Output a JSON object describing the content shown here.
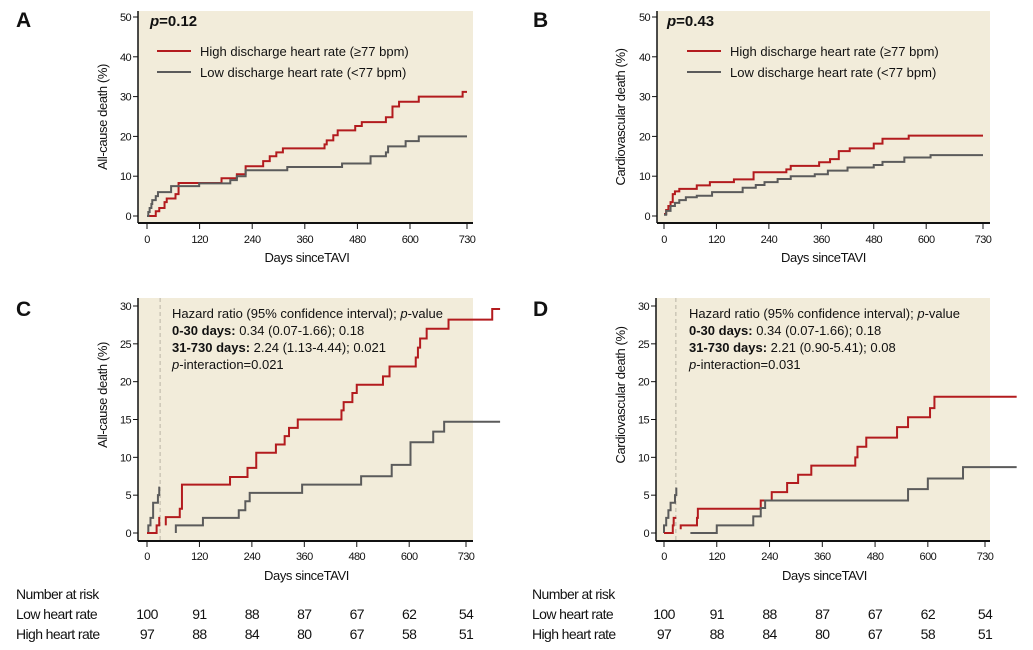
{
  "colors": {
    "high": "#b31b1e",
    "low": "#5b5b5b",
    "background": "#f2ecda",
    "axis": "#111111"
  },
  "chart_data": [
    {
      "panel": "A",
      "type": "line",
      "step": true,
      "p_label": "p",
      "p_value": "=0.12",
      "ylabel": "All-cause death (%)",
      "xlabel": "Days sinceTAVI",
      "ylim": [
        0,
        50
      ],
      "yticks": [
        0,
        10,
        20,
        30,
        40,
        50
      ],
      "xlim": [
        0,
        730
      ],
      "xticks": [
        0,
        120,
        240,
        360,
        480,
        600,
        730
      ],
      "legend": [
        "High discharge heart rate (≥77 bpm)",
        "Low discharge heart rate (<77 bpm)"
      ],
      "legend_position": "top-left",
      "series": [
        {
          "name": "High discharge heart rate (≥77 bpm)",
          "color_key": "high",
          "end": 730,
          "points": [
            [
              0,
              0
            ],
            [
              20,
              1.2
            ],
            [
              28,
              2
            ],
            [
              40,
              3.5
            ],
            [
              45,
              4.4
            ],
            [
              65,
              5.5
            ],
            [
              72,
              8.3
            ],
            [
              170,
              9.5
            ],
            [
              205,
              10.5
            ],
            [
              225,
              12.5
            ],
            [
              265,
              13.8
            ],
            [
              280,
              15
            ],
            [
              295,
              16
            ],
            [
              310,
              17
            ],
            [
              405,
              18
            ],
            [
              410,
              19
            ],
            [
              425,
              20.3
            ],
            [
              435,
              21.5
            ],
            [
              475,
              22.6
            ],
            [
              490,
              23.6
            ],
            [
              545,
              24.8
            ],
            [
              560,
              27.5
            ],
            [
              575,
              28.7
            ],
            [
              620,
              30
            ],
            [
              720,
              31.2
            ]
          ]
        },
        {
          "name": "Low discharge heart rate (<77 bpm)",
          "color_key": "low",
          "end": 730,
          "points": [
            [
              0,
              0
            ],
            [
              3,
              1
            ],
            [
              6,
              2
            ],
            [
              10,
              3
            ],
            [
              12,
              4
            ],
            [
              20,
              5
            ],
            [
              25,
              6
            ],
            [
              55,
              7.5
            ],
            [
              119,
              8.2
            ],
            [
              190,
              9
            ],
            [
              205,
              10
            ],
            [
              225,
              11.5
            ],
            [
              320,
              12.3
            ],
            [
              445,
              13.2
            ],
            [
              510,
              15
            ],
            [
              545,
              16
            ],
            [
              550,
              17.5
            ],
            [
              590,
              18.8
            ],
            [
              620,
              20
            ]
          ]
        }
      ]
    },
    {
      "panel": "B",
      "type": "line",
      "step": true,
      "p_label": "p",
      "p_value": "=0.43",
      "ylabel": "Cardiovascular death (%)",
      "xlabel": "Days sinceTAVI",
      "ylim": [
        0,
        50
      ],
      "yticks": [
        0,
        10,
        20,
        30,
        40,
        50
      ],
      "xlim": [
        0,
        730
      ],
      "xticks": [
        0,
        120,
        240,
        360,
        480,
        600,
        730
      ],
      "legend": [
        "High discharge heart rate (≥77 bpm)",
        "Low discharge heart rate (<77 bpm)"
      ],
      "legend_position": "top-left",
      "series": [
        {
          "name": "High discharge heart rate (≥77 bpm)",
          "color_key": "high",
          "end": 730,
          "points": [
            [
              0,
              0.5
            ],
            [
              5,
              1.5
            ],
            [
              10,
              2.5
            ],
            [
              15,
              3.5
            ],
            [
              20,
              5.5
            ],
            [
              25,
              6.2
            ],
            [
              35,
              6.8
            ],
            [
              75,
              7.7
            ],
            [
              105,
              8.5
            ],
            [
              160,
              9.2
            ],
            [
              205,
              11
            ],
            [
              280,
              11.7
            ],
            [
              290,
              12.6
            ],
            [
              355,
              13.5
            ],
            [
              380,
              14.3
            ],
            [
              400,
              16.3
            ],
            [
              425,
              17
            ],
            [
              480,
              18.2
            ],
            [
              500,
              19.4
            ],
            [
              560,
              20.2
            ]
          ]
        },
        {
          "name": "Low discharge heart rate (<77 bpm)",
          "color_key": "low",
          "end": 730,
          "points": [
            [
              0,
              0.3
            ],
            [
              5,
              1.3
            ],
            [
              15,
              2.5
            ],
            [
              25,
              3.3
            ],
            [
              35,
              4
            ],
            [
              50,
              4.7
            ],
            [
              75,
              5.1
            ],
            [
              110,
              6
            ],
            [
              180,
              7.1
            ],
            [
              210,
              7.8
            ],
            [
              230,
              8.5
            ],
            [
              260,
              9.3
            ],
            [
              290,
              10
            ],
            [
              345,
              10.5
            ],
            [
              375,
              11.4
            ],
            [
              420,
              12.2
            ],
            [
              480,
              12.8
            ],
            [
              500,
              13.6
            ],
            [
              550,
              14.7
            ],
            [
              610,
              15.3
            ]
          ]
        }
      ]
    },
    {
      "panel": "C",
      "type": "line",
      "step": true,
      "landmark_day": 30,
      "ylabel": "All-cause death (%)",
      "xlabel": "Days sinceTAVI",
      "ylim": [
        0,
        30
      ],
      "yticks": [
        0,
        5,
        10,
        15,
        20,
        25,
        30
      ],
      "xlim": [
        0,
        730
      ],
      "xticks": [
        0,
        120,
        240,
        360,
        480,
        600,
        730
      ],
      "annotation": [
        [
          {
            "t": "Hazard ratio (95% confidence interval); "
          },
          {
            "t": "p",
            "i": true
          },
          {
            "t": "-value"
          }
        ],
        [
          {
            "t": "0-30 days:",
            "b": true
          },
          {
            "t": " 0.34 (0.07-1.66); 0.18"
          }
        ],
        [
          {
            "t": "31-730 days:",
            "b": true
          },
          {
            "t": " 2.24 (1.13-4.44); 0.021"
          }
        ],
        [
          {
            "t": "p",
            "i": true
          },
          {
            "t": "-interaction=0.021"
          }
        ]
      ],
      "series": [
        {
          "name": "Low heart rate 0-30",
          "color_key": "low",
          "end": 30,
          "points": [
            [
              0,
              0
            ],
            [
              3,
              1
            ],
            [
              8,
              2
            ],
            [
              14,
              4
            ],
            [
              25,
              5
            ],
            [
              28,
              6
            ]
          ]
        },
        {
          "name": "High heart rate 0-30",
          "color_key": "high",
          "end": 30,
          "points": [
            [
              0,
              0
            ],
            [
              22,
              1
            ],
            [
              28,
              2
            ]
          ]
        },
        {
          "name": "High heart rate 31-730",
          "color_key": "high",
          "end": 808,
          "points": [
            [
              43,
              1
            ],
            [
              43,
              2.1
            ],
            [
              75,
              3.2
            ],
            [
              80,
              6.4
            ],
            [
              190,
              7.4
            ],
            [
              230,
              8.6
            ],
            [
              250,
              10.6
            ],
            [
              295,
              11.7
            ],
            [
              315,
              12.8
            ],
            [
              325,
              13.9
            ],
            [
              345,
              15
            ],
            [
              445,
              16.2
            ],
            [
              450,
              17.3
            ],
            [
              470,
              18.5
            ],
            [
              480,
              19.6
            ],
            [
              540,
              20.7
            ],
            [
              555,
              22
            ],
            [
              615,
              23.2
            ],
            [
              620,
              24.5
            ],
            [
              625,
              25.7
            ],
            [
              640,
              27
            ],
            [
              690,
              28.2
            ],
            [
              790,
              29.6
            ]
          ]
        },
        {
          "name": "Low heart rate 31-730",
          "color_key": "low",
          "end": 808,
          "points": [
            [
              66,
              0
            ],
            [
              66,
              1
            ],
            [
              128,
              2
            ],
            [
              210,
              3
            ],
            [
              225,
              4.2
            ],
            [
              235,
              5.3
            ],
            [
              355,
              6.4
            ],
            [
              490,
              7.5
            ],
            [
              560,
              9
            ],
            [
              603,
              12
            ],
            [
              655,
              13.4
            ],
            [
              680,
              14.7
            ]
          ]
        }
      ]
    },
    {
      "panel": "D",
      "type": "line",
      "step": true,
      "landmark_day": 27,
      "ylabel": "Cardiovascular death (%)",
      "xlabel": "Days sinceTAVI",
      "ylim": [
        0,
        30
      ],
      "yticks": [
        0,
        5,
        10,
        15,
        20,
        25,
        30
      ],
      "xlim": [
        0,
        730
      ],
      "xticks": [
        0,
        120,
        240,
        360,
        480,
        600,
        730
      ],
      "annotation": [
        [
          {
            "t": "Hazard ratio (95% confidence interval); "
          },
          {
            "t": "p",
            "i": true
          },
          {
            "t": "-value"
          }
        ],
        [
          {
            "t": "0-30 days:",
            "b": true
          },
          {
            "t": " 0.34 (0.07-1.66); 0.18"
          }
        ],
        [
          {
            "t": "31-730 days:",
            "b": true
          },
          {
            "t": " 2.21 (0.90-5.41); 0.08"
          }
        ],
        [
          {
            "t": "p",
            "i": true
          },
          {
            "t": "-interaction=0.031"
          }
        ]
      ],
      "series": [
        {
          "name": "Low heart rate 0-30",
          "color_key": "low",
          "end": 28,
          "points": [
            [
              0,
              0
            ],
            [
              0,
              1
            ],
            [
              5,
              2
            ],
            [
              10,
              3
            ],
            [
              15,
              4
            ],
            [
              25,
              5
            ],
            [
              28,
              6
            ]
          ]
        },
        {
          "name": "High heart rate 0-30",
          "color_key": "high",
          "end": 28,
          "points": [
            [
              0,
              0
            ],
            [
              20,
              1
            ],
            [
              22,
              2
            ]
          ]
        },
        {
          "name": "High heart rate 31-730",
          "color_key": "high",
          "end": 802,
          "points": [
            [
              38,
              0.5
            ],
            [
              38,
              1
            ],
            [
              75,
              2
            ],
            [
              77,
              3.2
            ],
            [
              220,
              4.3
            ],
            [
              245,
              5.4
            ],
            [
              280,
              6.6
            ],
            [
              305,
              7.7
            ],
            [
              335,
              8.9
            ],
            [
              435,
              10
            ],
            [
              440,
              11.4
            ],
            [
              460,
              12.6
            ],
            [
              530,
              14
            ],
            [
              555,
              15.3
            ],
            [
              605,
              16.5
            ],
            [
              615,
              18
            ]
          ]
        },
        {
          "name": "Low heart rate 31-730",
          "color_key": "low",
          "end": 802,
          "points": [
            [
              60,
              0
            ],
            [
              120,
              1
            ],
            [
              203,
              2.2
            ],
            [
              220,
              3.3
            ],
            [
              230,
              4.3
            ],
            [
              555,
              5.8
            ],
            [
              600,
              7.2
            ],
            [
              680,
              8.7
            ]
          ]
        }
      ]
    }
  ],
  "risk_table": {
    "title": "Number at risk",
    "rows": [
      {
        "label": "Low heart rate",
        "values": [
          "100",
          "91",
          "88",
          "87",
          "67",
          "62",
          "54"
        ]
      },
      {
        "label": "High heart rate",
        "values": [
          "97",
          "88",
          "84",
          "80",
          "67",
          "58",
          "51"
        ]
      }
    ]
  }
}
